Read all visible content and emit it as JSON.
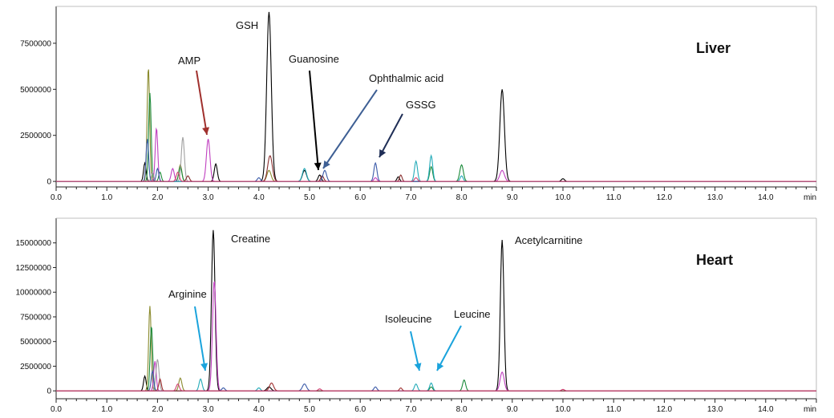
{
  "chart_data": [
    {
      "type": "line",
      "title": "Liver",
      "xunit": "min",
      "xlim": [
        0,
        15
      ],
      "ylim": [
        -300000,
        9500000
      ],
      "xticks": [
        "0.0",
        "1.0",
        "2.0",
        "3.0",
        "4.0",
        "5.0",
        "6.0",
        "7.0",
        "8.0",
        "9.0",
        "10.0",
        "11.0",
        "12.0",
        "13.0",
        "14.0"
      ],
      "yticks": [
        "0",
        "2500000",
        "5000000",
        "7500000"
      ],
      "annotations": [
        {
          "label": "GSH",
          "x": 4.2,
          "y": 9200000,
          "arrow": false,
          "color": "#000000"
        },
        {
          "label": "AMP",
          "x": 2.95,
          "y": 2300000,
          "arrow": true,
          "color": "#a0302d"
        },
        {
          "label": "Guanosine",
          "x": 5.2,
          "y": 350000,
          "arrow": true,
          "color": "#000000"
        },
        {
          "label": "Ophthalmic acid",
          "x": 5.3,
          "y": 500000,
          "arrow": true,
          "color": "#3e5f94"
        },
        {
          "label": "GSSG",
          "x": 6.3,
          "y": 1000000,
          "arrow": true,
          "color": "#1f2e56"
        }
      ],
      "series": [
        {
          "color": "#000000",
          "peaks": [
            [
              4.2,
              9200000,
              0.045
            ],
            [
              8.8,
              5000000,
              0.045
            ],
            [
              3.15,
              950000,
              0.03
            ],
            [
              1.75,
              1000000,
              0.025
            ],
            [
              4.9,
              600000,
              0.04
            ],
            [
              5.2,
              350000,
              0.03
            ],
            [
              6.75,
              250000,
              0.025
            ],
            [
              10.0,
              150000,
              0.03
            ]
          ]
        },
        {
          "color": "#8b8b2e",
          "peaks": [
            [
              1.82,
              6200000,
              0.025
            ],
            [
              2.45,
              900000,
              0.03
            ],
            [
              4.2,
              600000,
              0.04
            ]
          ]
        },
        {
          "color": "#1b8a3a",
          "peaks": [
            [
              1.85,
              4800000,
              0.025
            ],
            [
              2.05,
              500000,
              0.025
            ],
            [
              2.45,
              800000,
              0.03
            ],
            [
              8.0,
              900000,
              0.035
            ],
            [
              7.4,
              800000,
              0.03
            ]
          ]
        },
        {
          "color": "#c040c0",
          "peaks": [
            [
              1.98,
              2900000,
              0.025
            ],
            [
              3.0,
              2300000,
              0.035
            ],
            [
              2.3,
              700000,
              0.03
            ],
            [
              8.8,
              600000,
              0.045
            ],
            [
              6.3,
              200000,
              0.03
            ]
          ]
        },
        {
          "color": "#a0a0a0",
          "peaks": [
            [
              2.5,
              2400000,
              0.03
            ],
            [
              1.9,
              500000,
              0.025
            ]
          ]
        },
        {
          "color": "#8a3030",
          "peaks": [
            [
              4.22,
              1400000,
              0.045
            ],
            [
              5.25,
              300000,
              0.03
            ],
            [
              2.6,
              300000,
              0.03
            ],
            [
              6.8,
              350000,
              0.025
            ]
          ]
        },
        {
          "color": "#3a5aa8",
          "peaks": [
            [
              6.3,
              1000000,
              0.03
            ],
            [
              1.8,
              2300000,
              0.025
            ],
            [
              2.0,
              700000,
              0.025
            ],
            [
              5.3,
              600000,
              0.035
            ],
            [
              4.0,
              200000,
              0.03
            ]
          ]
        },
        {
          "color": "#22aab8",
          "peaks": [
            [
              7.1,
              1100000,
              0.03
            ],
            [
              7.4,
              1400000,
              0.03
            ],
            [
              4.9,
              700000,
              0.04
            ],
            [
              8.0,
              300000,
              0.03
            ]
          ]
        },
        {
          "color": "#d04070",
          "peaks": [
            [
              2.4,
              500000,
              0.03
            ],
            [
              7.1,
              200000,
              0.03
            ]
          ]
        }
      ]
    },
    {
      "type": "line",
      "title": "Heart",
      "xunit": "min",
      "xlim": [
        0,
        15
      ],
      "ylim": [
        -800000,
        17500000
      ],
      "xticks": [
        "0.0",
        "1.0",
        "2.0",
        "3.0",
        "4.0",
        "5.0",
        "6.0",
        "7.0",
        "8.0",
        "9.0",
        "10.0",
        "11.0",
        "12.0",
        "13.0",
        "14.0"
      ],
      "yticks": [
        "0",
        "2500000",
        "5000000",
        "7500000",
        "10000000",
        "12500000",
        "15000000"
      ],
      "annotations": [
        {
          "label": "Creatine",
          "x": 3.1,
          "y": 16300000,
          "arrow": false,
          "color": "#000000"
        },
        {
          "label": "Acetylcarnitine",
          "x": 8.8,
          "y": 15300000,
          "arrow": false,
          "color": "#000000"
        },
        {
          "label": "Arginine",
          "x": 2.85,
          "y": 1200000,
          "arrow": true,
          "color": "#1aa3dc"
        },
        {
          "label": "Isoleucine",
          "x": 7.1,
          "y": 500000,
          "arrow": true,
          "color": "#1aa3dc"
        },
        {
          "label": "Leucine",
          "x": 7.4,
          "y": 500000,
          "arrow": true,
          "color": "#1aa3dc"
        }
      ],
      "series": [
        {
          "color": "#000000",
          "peaks": [
            [
              3.1,
              16300000,
              0.035
            ],
            [
              8.8,
              15300000,
              0.035
            ],
            [
              1.75,
              1500000,
              0.025
            ],
            [
              4.2,
              400000,
              0.04
            ]
          ]
        },
        {
          "color": "#8b8b2e",
          "peaks": [
            [
              1.85,
              8600000,
              0.025
            ],
            [
              2.45,
              1300000,
              0.03
            ]
          ]
        },
        {
          "color": "#1b8a3a",
          "peaks": [
            [
              1.88,
              6600000,
              0.025
            ],
            [
              8.05,
              1100000,
              0.03
            ],
            [
              7.4,
              400000,
              0.03
            ]
          ]
        },
        {
          "color": "#c040c0",
          "peaks": [
            [
              3.12,
              11200000,
              0.035
            ],
            [
              8.8,
              1900000,
              0.04
            ],
            [
              1.95,
              3000000,
              0.025
            ]
          ]
        },
        {
          "color": "#a0a0a0",
          "peaks": [
            [
              2.0,
              3200000,
              0.03
            ]
          ]
        },
        {
          "color": "#3a5aa8",
          "peaks": [
            [
              1.9,
              2000000,
              0.025
            ],
            [
              4.9,
              700000,
              0.04
            ],
            [
              6.3,
              400000,
              0.03
            ],
            [
              3.3,
              300000,
              0.03
            ]
          ]
        },
        {
          "color": "#22aab8",
          "peaks": [
            [
              2.85,
              1200000,
              0.03
            ],
            [
              7.1,
              700000,
              0.03
            ],
            [
              7.4,
              800000,
              0.03
            ],
            [
              4.0,
              300000,
              0.03
            ]
          ]
        },
        {
          "color": "#a03030",
          "peaks": [
            [
              4.25,
              800000,
              0.04
            ],
            [
              2.05,
              1200000,
              0.025
            ],
            [
              6.8,
              300000,
              0.025
            ]
          ]
        },
        {
          "color": "#d04070",
          "peaks": [
            [
              2.4,
              700000,
              0.03
            ],
            [
              5.2,
              200000,
              0.03
            ],
            [
              10.0,
              150000,
              0.03
            ]
          ]
        }
      ]
    }
  ]
}
